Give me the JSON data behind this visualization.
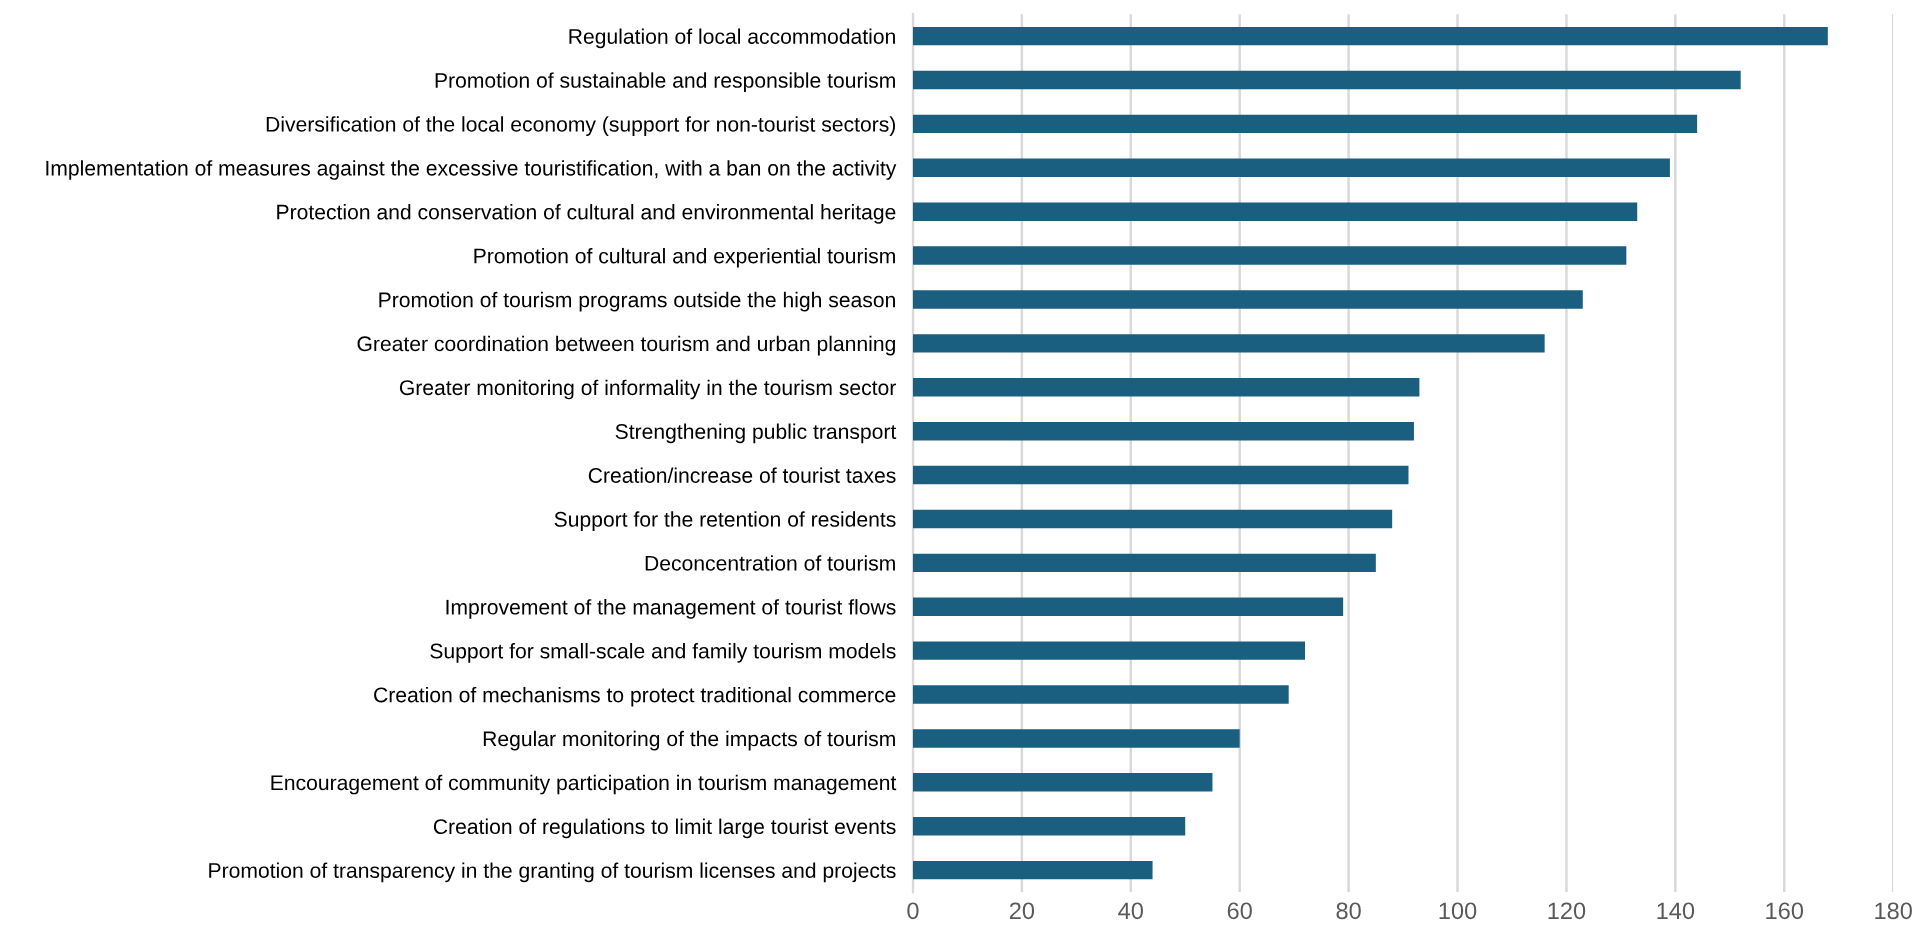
{
  "chart_data": {
    "type": "bar",
    "orientation": "horizontal",
    "categories": [
      "Regulation of local accommodation",
      "Promotion of sustainable and responsible tourism",
      "Diversification of the local economy (support for non-tourist sectors)",
      "Implementation of measures against the excessive touristification, with a ban on the activity",
      "Protection and conservation of cultural and environmental heritage",
      "Promotion of cultural and experiential tourism",
      "Promotion of tourism programs outside the high season",
      "Greater coordination between tourism and urban planning",
      "Greater monitoring of informality in the tourism sector",
      "Strengthening public transport",
      "Creation/increase of tourist taxes",
      "Support for the retention of residents",
      "Deconcentration of tourism",
      "Improvement of the management of tourist flows",
      "Support for small-scale and family tourism models",
      "Creation of mechanisms to protect traditional commerce",
      "Regular monitoring of the impacts of tourism",
      "Encouragement of community participation in tourism management",
      "Creation of regulations to limit large tourist events",
      "Promotion of transparency in the granting of tourism licenses and projects"
    ],
    "values": [
      168,
      152,
      144,
      139,
      133,
      131,
      123,
      116,
      93,
      92,
      91,
      88,
      85,
      79,
      72,
      69,
      60,
      55,
      50,
      44
    ],
    "color": "#1a5e80",
    "xlim": [
      0,
      180
    ],
    "xticks": [
      0,
      20,
      40,
      60,
      80,
      100,
      120,
      140,
      160,
      180
    ],
    "grid": "x"
  }
}
